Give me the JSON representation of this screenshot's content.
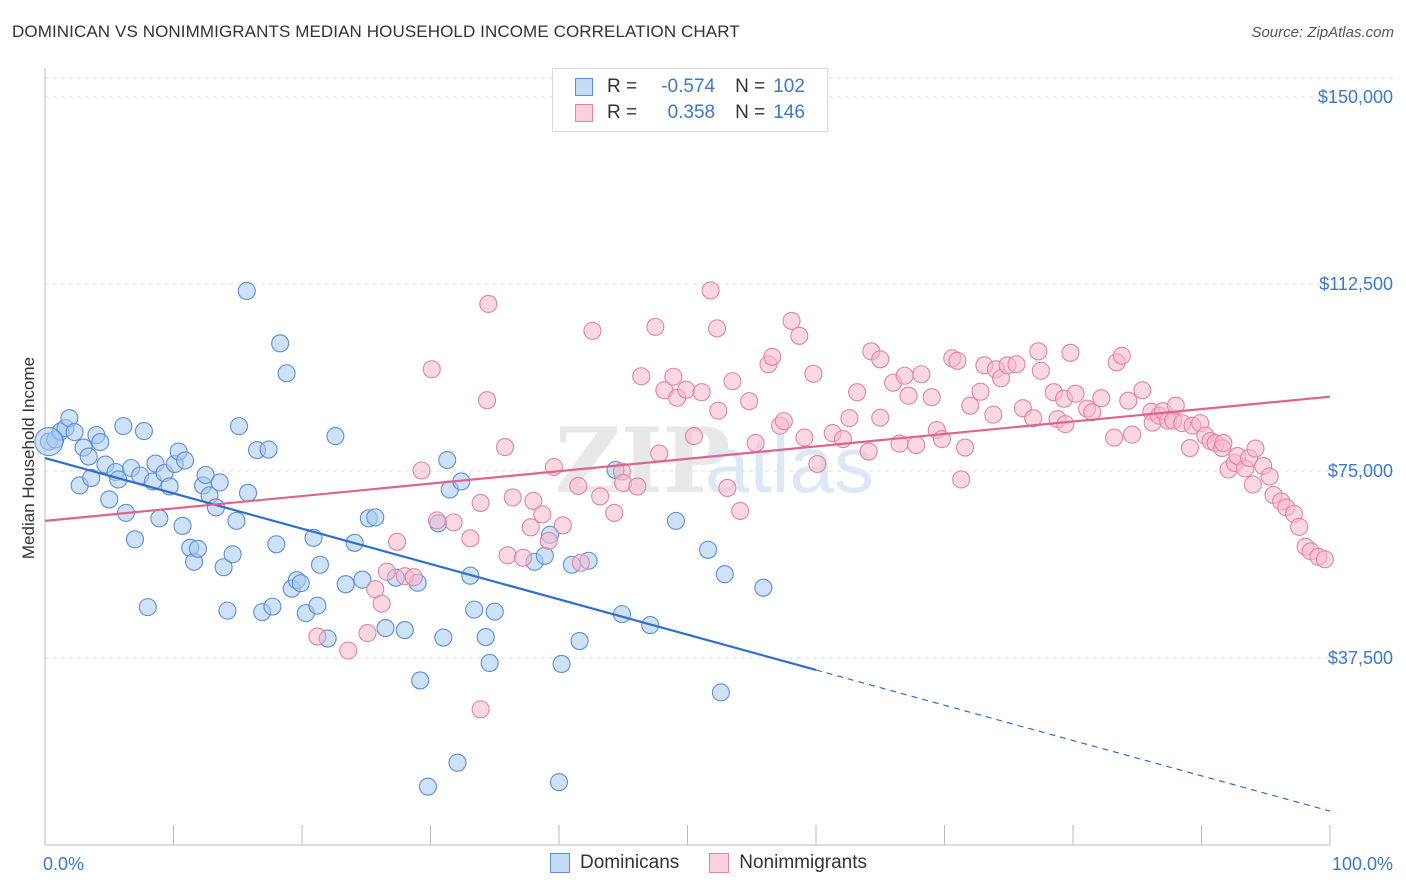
{
  "title": "DOMINICAN VS NONIMMIGRANTS MEDIAN HOUSEHOLD INCOME CORRELATION CHART",
  "source": "Source: ZipAtlas.com",
  "watermark": "ZIPatlas",
  "legend": {
    "rows": [
      {
        "r_label": "R =",
        "r_value": "-0.574",
        "n_label": "N =",
        "n_value": "102",
        "color": "#a8c8f0",
        "border": "#5b8fd6"
      },
      {
        "r_label": "R =",
        "r_value": "0.358",
        "n_label": "N =",
        "n_value": "146",
        "color": "#f6b8cb",
        "border": "#e483a3"
      }
    ]
  },
  "bottom_legend": [
    {
      "label": "Dominicans",
      "color": "#c5dbf6",
      "border": "#5b8fd6"
    },
    {
      "label": "Nonimmigrants",
      "color": "#f9d0dd",
      "border": "#e483a3"
    }
  ],
  "chart_data": {
    "type": "scatter",
    "title": "DOMINICAN VS NONIMMIGRANTS MEDIAN HOUSEHOLD INCOME CORRELATION CHART",
    "xlabel": "",
    "ylabel": "Median Household Income",
    "xlim": [
      0,
      100
    ],
    "ylim": [
      0,
      155000
    ],
    "x_tick_labels": [
      "0.0%",
      "100.0%"
    ],
    "y_ticks": [
      37500,
      75000,
      112500,
      150000
    ],
    "y_tick_labels": [
      "$37,500",
      "$75,000",
      "$112,500",
      "$150,000"
    ],
    "grid": true,
    "legend_position": "top-center",
    "series": [
      {
        "name": "Dominicans",
        "color": "#5b8fd6",
        "fill": "#a8c8f0",
        "trend": {
          "x": [
            0,
            60
          ],
          "y": [
            77600,
            35100
          ],
          "dashed_to": [
            100,
            6800
          ]
        },
        "points": [
          [
            0.3,
            80.9
          ],
          [
            0.8,
            81.3
          ],
          [
            1.2,
            82.9
          ],
          [
            1.6,
            83.6
          ],
          [
            1.9,
            85.6
          ],
          [
            2.3,
            82.8
          ],
          [
            2.7,
            72.1
          ],
          [
            3.0,
            79.7
          ],
          [
            3.4,
            77.9
          ],
          [
            3.6,
            73.6
          ],
          [
            4.0,
            82.2
          ],
          [
            4.3,
            80.8
          ],
          [
            4.7,
            76.3
          ],
          [
            5.0,
            69.3
          ],
          [
            5.5,
            74.8
          ],
          [
            5.7,
            73.3
          ],
          [
            6.1,
            84.0
          ],
          [
            6.3,
            66.6
          ],
          [
            6.7,
            75.6
          ],
          [
            7.0,
            61.3
          ],
          [
            7.4,
            74.1
          ],
          [
            7.7,
            83.0
          ],
          [
            8.0,
            47.7
          ],
          [
            8.4,
            72.9
          ],
          [
            8.6,
            76.5
          ],
          [
            8.9,
            65.5
          ],
          [
            9.3,
            74.6
          ],
          [
            9.7,
            71.9
          ],
          [
            10.1,
            76.4
          ],
          [
            10.4,
            78.9
          ],
          [
            10.7,
            64.0
          ],
          [
            10.9,
            77.1
          ],
          [
            11.3,
            59.6
          ],
          [
            11.6,
            56.8
          ],
          [
            11.9,
            59.4
          ],
          [
            12.3,
            72.1
          ],
          [
            12.5,
            74.2
          ],
          [
            12.8,
            70.1
          ],
          [
            13.3,
            67.7
          ],
          [
            13.6,
            72.7
          ],
          [
            13.9,
            55.7
          ],
          [
            14.2,
            47.0
          ],
          [
            14.6,
            58.3
          ],
          [
            14.9,
            65.0
          ],
          [
            15.1,
            84.0
          ],
          [
            15.7,
            111.1
          ],
          [
            15.8,
            70.6
          ],
          [
            16.5,
            79.2
          ],
          [
            16.9,
            46.7
          ],
          [
            17.4,
            79.3
          ],
          [
            17.7,
            47.8
          ],
          [
            18.0,
            60.3
          ],
          [
            18.3,
            100.6
          ],
          [
            18.8,
            94.6
          ],
          [
            19.2,
            51.4
          ],
          [
            19.6,
            53.1
          ],
          [
            19.9,
            52.5
          ],
          [
            20.3,
            46.5
          ],
          [
            20.9,
            61.6
          ],
          [
            21.2,
            48.0
          ],
          [
            21.4,
            56.2
          ],
          [
            22.0,
            41.4
          ],
          [
            22.6,
            82.0
          ],
          [
            23.4,
            52.3
          ],
          [
            24.1,
            60.6
          ],
          [
            24.7,
            53.2
          ],
          [
            25.2,
            65.5
          ],
          [
            25.7,
            65.7
          ],
          [
            26.5,
            43.5
          ],
          [
            27.3,
            53.6
          ],
          [
            28.0,
            43.1
          ],
          [
            29.0,
            52.6
          ],
          [
            29.2,
            33.0
          ],
          [
            29.8,
            11.7
          ],
          [
            30.6,
            64.5
          ],
          [
            31.0,
            41.6
          ],
          [
            31.3,
            77.2
          ],
          [
            31.5,
            71.3
          ],
          [
            32.1,
            16.5
          ],
          [
            32.4,
            72.9
          ],
          [
            33.1,
            54.0
          ],
          [
            33.4,
            47.2
          ],
          [
            34.3,
            41.7
          ],
          [
            34.6,
            36.5
          ],
          [
            35.0,
            46.8
          ],
          [
            38.1,
            56.8
          ],
          [
            38.9,
            58.0
          ],
          [
            39.3,
            62.2
          ],
          [
            40.0,
            12.6
          ],
          [
            40.2,
            36.3
          ],
          [
            41.0,
            56.2
          ],
          [
            41.6,
            40.9
          ],
          [
            42.3,
            57.0
          ],
          [
            44.4,
            75.2
          ],
          [
            44.9,
            46.3
          ],
          [
            47.1,
            44.1
          ],
          [
            49.1,
            65.0
          ],
          [
            51.6,
            59.2
          ],
          [
            52.6,
            30.6
          ],
          [
            52.9,
            54.3
          ],
          [
            55.9,
            51.6
          ]
        ]
      },
      {
        "name": "Nonimmigrants",
        "color": "#e483a3",
        "fill": "#f6b8cb",
        "trend": {
          "x": [
            0,
            100
          ],
          "y": [
            65000,
            89900
          ]
        },
        "points": [
          [
            21.2,
            41.8
          ],
          [
            23.6,
            39.0
          ],
          [
            25.1,
            42.5
          ],
          [
            25.7,
            51.3
          ],
          [
            26.2,
            48.4
          ],
          [
            26.6,
            54.8
          ],
          [
            27.4,
            60.8
          ],
          [
            28.0,
            53.9
          ],
          [
            28.7,
            53.7
          ],
          [
            29.3,
            75.1
          ],
          [
            30.1,
            95.4
          ],
          [
            30.5,
            65.1
          ],
          [
            31.8,
            64.7
          ],
          [
            33.1,
            61.5
          ],
          [
            33.9,
            68.6
          ],
          [
            33.9,
            27.2
          ],
          [
            34.4,
            89.2
          ],
          [
            34.5,
            108.5
          ],
          [
            35.8,
            79.8
          ],
          [
            36.0,
            58.1
          ],
          [
            36.4,
            69.7
          ],
          [
            37.2,
            57.6
          ],
          [
            37.8,
            63.7
          ],
          [
            38.0,
            69.0
          ],
          [
            38.7,
            66.3
          ],
          [
            39.2,
            61.0
          ],
          [
            39.6,
            75.8
          ],
          [
            40.3,
            64.1
          ],
          [
            41.5,
            72.0
          ],
          [
            41.7,
            56.6
          ],
          [
            42.6,
            103.1
          ],
          [
            43.2,
            69.9
          ],
          [
            44.3,
            66.6
          ],
          [
            44.9,
            74.9
          ],
          [
            45.0,
            72.6
          ],
          [
            46.1,
            71.9
          ],
          [
            46.4,
            94.0
          ],
          [
            47.5,
            103.9
          ],
          [
            47.8,
            78.5
          ],
          [
            48.2,
            91.2
          ],
          [
            48.9,
            93.9
          ],
          [
            49.2,
            89.7
          ],
          [
            49.9,
            91.3
          ],
          [
            50.5,
            82.0
          ],
          [
            51.1,
            90.8
          ],
          [
            51.8,
            111.2
          ],
          [
            52.3,
            103.6
          ],
          [
            52.4,
            87.1
          ],
          [
            53.1,
            71.6
          ],
          [
            53.5,
            93.0
          ],
          [
            54.1,
            67.0
          ],
          [
            54.8,
            89.0
          ],
          [
            55.3,
            80.6
          ],
          [
            56.3,
            96.4
          ],
          [
            56.6,
            97.9
          ],
          [
            57.2,
            84.1
          ],
          [
            57.5,
            85.0
          ],
          [
            58.1,
            105.1
          ],
          [
            58.7,
            102.1
          ],
          [
            59.1,
            81.7
          ],
          [
            59.8,
            94.5
          ],
          [
            60.1,
            76.4
          ],
          [
            61.3,
            82.6
          ],
          [
            62.1,
            81.4
          ],
          [
            62.6,
            85.6
          ],
          [
            63.2,
            90.8
          ],
          [
            64.1,
            78.9
          ],
          [
            64.3,
            99.0
          ],
          [
            65.0,
            97.4
          ],
          [
            65.0,
            85.7
          ],
          [
            66.0,
            92.7
          ],
          [
            66.5,
            80.5
          ],
          [
            66.9,
            94.1
          ],
          [
            67.2,
            90.1
          ],
          [
            67.8,
            80.2
          ],
          [
            68.2,
            94.4
          ],
          [
            69.0,
            89.8
          ],
          [
            69.4,
            83.2
          ],
          [
            69.8,
            81.4
          ],
          [
            70.6,
            97.6
          ],
          [
            71.0,
            97.1
          ],
          [
            71.3,
            73.3
          ],
          [
            71.6,
            79.7
          ],
          [
            72.0,
            88.1
          ],
          [
            72.8,
            90.9
          ],
          [
            73.1,
            96.2
          ],
          [
            73.8,
            86.3
          ],
          [
            74.0,
            95.4
          ],
          [
            74.4,
            93.6
          ],
          [
            74.9,
            96.2
          ],
          [
            75.6,
            96.4
          ],
          [
            76.1,
            87.6
          ],
          [
            76.9,
            85.6
          ],
          [
            77.3,
            99.0
          ],
          [
            77.5,
            95.1
          ],
          [
            78.5,
            90.8
          ],
          [
            78.8,
            85.4
          ],
          [
            79.3,
            89.5
          ],
          [
            79.4,
            84.4
          ],
          [
            79.8,
            98.7
          ],
          [
            80.2,
            90.5
          ],
          [
            81.1,
            87.5
          ],
          [
            81.5,
            86.8
          ],
          [
            82.2,
            89.6
          ],
          [
            83.2,
            81.7
          ],
          [
            83.4,
            96.8
          ],
          [
            83.8,
            98.1
          ],
          [
            84.3,
            89.1
          ],
          [
            84.6,
            82.3
          ],
          [
            85.4,
            91.2
          ],
          [
            86.1,
            86.9
          ],
          [
            86.2,
            84.7
          ],
          [
            86.7,
            86.1
          ],
          [
            87.0,
            87.0
          ],
          [
            87.4,
            85.1
          ],
          [
            87.8,
            85.1
          ],
          [
            88.0,
            88.1
          ],
          [
            88.5,
            84.6
          ],
          [
            89.1,
            79.6
          ],
          [
            89.3,
            84.1
          ],
          [
            89.9,
            84.6
          ],
          [
            90.3,
            82.1
          ],
          [
            90.7,
            81.0
          ],
          [
            91.1,
            80.6
          ],
          [
            91.6,
            79.6
          ],
          [
            91.7,
            80.6
          ],
          [
            92.1,
            75.3
          ],
          [
            92.6,
            76.6
          ],
          [
            92.8,
            78.0
          ],
          [
            93.4,
            75.5
          ],
          [
            93.7,
            77.6
          ],
          [
            94.0,
            72.3
          ],
          [
            94.2,
            79.5
          ],
          [
            94.8,
            76.0
          ],
          [
            95.3,
            73.9
          ],
          [
            95.6,
            70.2
          ],
          [
            96.2,
            68.9
          ],
          [
            96.6,
            67.7
          ],
          [
            97.2,
            66.4
          ],
          [
            97.6,
            63.8
          ],
          [
            98.1,
            59.8
          ],
          [
            98.5,
            58.9
          ],
          [
            99.1,
            57.8
          ],
          [
            99.6,
            57.3
          ]
        ]
      }
    ]
  }
}
